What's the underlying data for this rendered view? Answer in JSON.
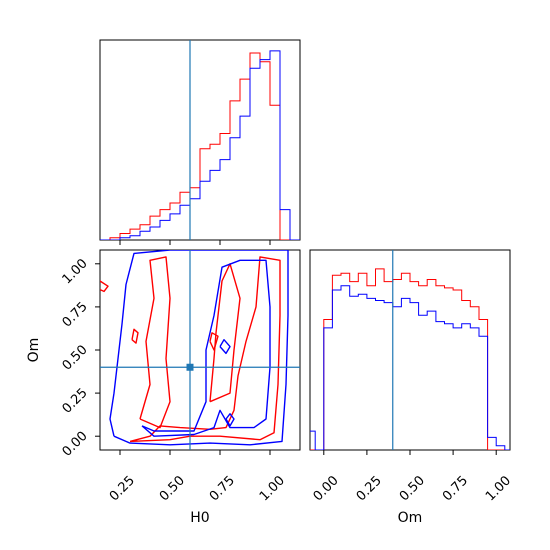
{
  "chart_data": {
    "type": "corner",
    "parameters": [
      "H0",
      "Om"
    ],
    "colors": {
      "series_1": "#ff0000",
      "series_2": "#0000ff",
      "truth": "#1f77b4",
      "axes": "#000000"
    },
    "truth": {
      "H0": 0.6,
      "Om": 0.4
    },
    "grid": false,
    "legend": "none",
    "panels": [
      {
        "id": "H0_hist",
        "type": "step-histogram",
        "xlabel": "",
        "xlim": [
          0.15,
          1.15
        ],
        "bins": [
          0.15,
          0.2,
          0.25,
          0.3,
          0.35,
          0.4,
          0.45,
          0.5,
          0.55,
          0.6,
          0.65,
          0.7,
          0.75,
          0.8,
          0.85,
          0.9,
          0.95,
          1.0,
          1.05,
          1.1,
          1.15
        ],
        "series": [
          {
            "color": "#ff0000",
            "values": [
              0.0,
              0.01,
              0.03,
              0.05,
              0.07,
              0.11,
              0.14,
              0.17,
              0.22,
              0.24,
              0.42,
              0.44,
              0.49,
              0.64,
              0.74,
              0.86,
              0.82,
              0.62,
              0.0,
              0.0
            ]
          },
          {
            "color": "#0000ff",
            "values": [
              0.0,
              0.0,
              0.01,
              0.02,
              0.04,
              0.06,
              0.09,
              0.12,
              0.16,
              0.19,
              0.27,
              0.32,
              0.37,
              0.47,
              0.57,
              0.79,
              0.83,
              0.87,
              0.14,
              0.0
            ]
          }
        ]
      },
      {
        "id": "Om_hist",
        "type": "step-histogram",
        "xlabel": "Om",
        "xlim": [
          -0.08,
          1.08
        ],
        "ticks": [
          "0.00",
          "0.25",
          "0.50",
          "0.75",
          "1.00"
        ],
        "tick_values": [
          0.0,
          0.25,
          0.5,
          0.75,
          1.0
        ],
        "bins": [
          -0.1,
          -0.05,
          0.0,
          0.05,
          0.1,
          0.15,
          0.2,
          0.25,
          0.3,
          0.35,
          0.4,
          0.45,
          0.5,
          0.55,
          0.6,
          0.65,
          0.7,
          0.75,
          0.8,
          0.85,
          0.9,
          0.95,
          1.0,
          1.05,
          1.1
        ],
        "series": [
          {
            "color": "#ff0000",
            "values": [
              0.0,
              0.0,
              0.62,
              0.83,
              0.84,
              0.8,
              0.84,
              0.78,
              0.86,
              0.8,
              0.81,
              0.84,
              0.8,
              0.78,
              0.81,
              0.78,
              0.77,
              0.76,
              0.71,
              0.68,
              0.62,
              0.0,
              0.0,
              0.0
            ]
          },
          {
            "color": "#0000ff",
            "values": [
              0.09,
              0.0,
              0.58,
              0.76,
              0.78,
              0.73,
              0.74,
              0.72,
              0.71,
              0.7,
              0.68,
              0.72,
              0.7,
              0.64,
              0.66,
              0.61,
              0.6,
              0.58,
              0.6,
              0.58,
              0.54,
              0.06,
              0.02,
              0.0
            ]
          }
        ]
      },
      {
        "id": "H0_Om_contour",
        "type": "contour",
        "xlabel": "H0",
        "ylabel": "Om",
        "xlim": [
          0.15,
          1.15
        ],
        "ylim": [
          -0.08,
          1.08
        ],
        "xticks": [
          "0.25",
          "0.50",
          "0.75",
          "1.00"
        ],
        "xtick_values": [
          0.25,
          0.5,
          0.75,
          1.0
        ],
        "yticks": [
          "0.00",
          "0.25",
          "0.50",
          "0.75",
          "1.00"
        ],
        "ytick_values": [
          0.0,
          0.25,
          0.5,
          0.75,
          1.0
        ],
        "series": [
          {
            "color": "#ff0000",
            "contours": [
              [
                [
                  0.3,
                  -0.03
                ],
                [
                  0.5,
                  -0.02
                ],
                [
                  0.6,
                  0.0
                ],
                [
                  0.75,
                  0.0
                ],
                [
                  0.95,
                  -0.02
                ],
                [
                  1.02,
                  0.02
                ],
                [
                  1.04,
                  0.3
                ],
                [
                  1.05,
                  0.7
                ],
                [
                  1.05,
                  1.02
                ],
                [
                  0.95,
                  1.04
                ],
                [
                  0.93,
                  0.75
                ],
                [
                  0.88,
                  0.55
                ],
                [
                  0.84,
                  0.35
                ],
                [
                  0.82,
                  0.15
                ],
                [
                  0.78,
                  0.05
                ],
                [
                  0.7,
                  0.04
                ],
                [
                  0.55,
                  0.05
                ],
                [
                  0.45,
                  0.06
                ],
                [
                  0.4,
                  0.0
                ],
                [
                  0.3,
                  -0.03
                ]
              ],
              [
                [
                  0.35,
                  0.1
                ],
                [
                  0.4,
                  0.3
                ],
                [
                  0.38,
                  0.55
                ],
                [
                  0.42,
                  0.8
                ],
                [
                  0.4,
                  1.02
                ],
                [
                  0.48,
                  1.04
                ],
                [
                  0.5,
                  0.8
                ],
                [
                  0.48,
                  0.45
                ],
                [
                  0.5,
                  0.2
                ],
                [
                  0.45,
                  0.05
                ],
                [
                  0.35,
                  0.1
                ]
              ],
              [
                [
                  0.7,
                  0.2
                ],
                [
                  0.72,
                  0.45
                ],
                [
                  0.73,
                  0.6
                ],
                [
                  0.76,
                  0.9
                ],
                [
                  0.8,
                  1.0
                ],
                [
                  0.85,
                  0.8
                ],
                [
                  0.82,
                  0.5
                ],
                [
                  0.8,
                  0.25
                ],
                [
                  0.7,
                  0.2
                ]
              ],
              [
                [
                  0.13,
                  0.86
                ],
                [
                  0.17,
                  0.84
                ],
                [
                  0.19,
                  0.87
                ],
                [
                  0.15,
                  0.9
                ],
                [
                  0.13,
                  0.86
                ]
              ],
              [
                [
                  0.31,
                  0.56
                ],
                [
                  0.33,
                  0.54
                ],
                [
                  0.34,
                  0.6
                ],
                [
                  0.32,
                  0.62
                ],
                [
                  0.31,
                  0.56
                ]
              ],
              [
                [
                  0.7,
                  0.55
                ],
                [
                  0.72,
                  0.5
                ],
                [
                  0.74,
                  0.58
                ],
                [
                  0.71,
                  0.6
                ],
                [
                  0.7,
                  0.55
                ]
              ]
            ]
          },
          {
            "color": "#0000ff",
            "contours": [
              [
                [
                  0.22,
                  0.0
                ],
                [
                  0.3,
                  -0.04
                ],
                [
                  0.5,
                  -0.05
                ],
                [
                  0.7,
                  -0.04
                ],
                [
                  0.9,
                  -0.05
                ],
                [
                  1.06,
                  -0.03
                ],
                [
                  1.08,
                  0.3
                ],
                [
                  1.09,
                  0.7
                ],
                [
                  1.09,
                  1.08
                ],
                [
                  0.8,
                  1.08
                ],
                [
                  0.5,
                  1.08
                ],
                [
                  0.32,
                  1.06
                ],
                [
                  0.28,
                  0.88
                ],
                [
                  0.26,
                  0.65
                ],
                [
                  0.24,
                  0.45
                ],
                [
                  0.22,
                  0.25
                ],
                [
                  0.2,
                  0.1
                ],
                [
                  0.22,
                  0.0
                ]
              ],
              [
                [
                  0.36,
                  0.06
                ],
                [
                  0.42,
                  0.03
                ],
                [
                  0.62,
                  0.03
                ],
                [
                  0.68,
                  0.2
                ],
                [
                  0.68,
                  0.5
                ],
                [
                  0.72,
                  0.7
                ],
                [
                  0.76,
                  0.98
                ],
                [
                  0.85,
                  1.02
                ],
                [
                  0.98,
                  1.02
                ],
                [
                  1.0,
                  0.75
                ],
                [
                  1.0,
                  0.4
                ],
                [
                  0.98,
                  0.1
                ],
                [
                  0.92,
                  0.05
                ],
                [
                  0.8,
                  0.05
                ],
                [
                  0.75,
                  0.15
                ],
                [
                  0.72,
                  0.05
                ],
                [
                  0.62,
                  0.01
                ],
                [
                  0.42,
                  0.0
                ],
                [
                  0.36,
                  0.06
                ]
              ],
              [
                [
                  0.75,
                  0.52
                ],
                [
                  0.78,
                  0.48
                ],
                [
                  0.8,
                  0.52
                ],
                [
                  0.77,
                  0.56
                ],
                [
                  0.75,
                  0.52
                ]
              ],
              [
                [
                  0.78,
                  0.1
                ],
                [
                  0.8,
                  0.06
                ],
                [
                  0.82,
                  0.1
                ],
                [
                  0.8,
                  0.13
                ],
                [
                  0.78,
                  0.1
                ]
              ]
            ]
          }
        ]
      }
    ]
  }
}
